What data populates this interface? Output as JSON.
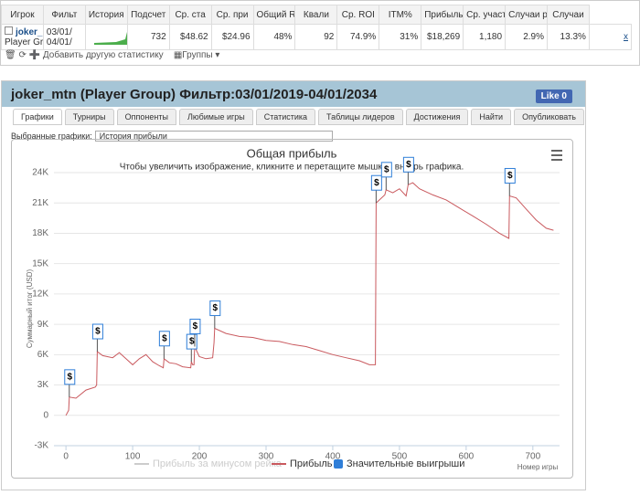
{
  "table": {
    "headers": [
      "Игрок",
      "Фильт",
      "История прибыли",
      "Подсчет",
      "Ср. ста",
      "Ср. при",
      "Общий ROI",
      "Квали",
      "Ср. ROI",
      "ITM%",
      "Прибыль",
      "Ср. участ",
      "Случаи р",
      "Случаи"
    ],
    "player": "joker_mtn",
    "group": "Player Group",
    "filter": [
      "03/01/",
      "04/01/"
    ],
    "cells": [
      "732",
      "$48.62",
      "$24.96",
      "48%",
      "92",
      "74.9%",
      "31%",
      "$18,269",
      "1,180",
      "2.9%",
      "13.3%"
    ],
    "remove": "x"
  },
  "toolbar": {
    "add": "Добавить другую статистику",
    "groups": "Группы"
  },
  "panel": {
    "title": "joker_mtn (Player Group) Фильтр:03/01/2019-04/01/2034",
    "like": "Like 0",
    "tabs": [
      "Графики",
      "Турниры",
      "Оппоненты",
      "Любимые игры",
      "Статистика",
      "Таблицы лидеров",
      "Достижения",
      "Найти",
      "Опубликовать"
    ],
    "selected_label": "Выбранные графики:",
    "selected_value": "История прибыли"
  },
  "chart_data": {
    "type": "line",
    "title": "Общая прибыль",
    "subtitle": "Чтобы увеличить изображение, кликните и перетащите мышкой внутрь графика.",
    "x_label": "Номер игры",
    "y_label": "Суммарный итог (USD)",
    "xlim": [
      -18,
      740
    ],
    "xticks": [
      0,
      100,
      200,
      300,
      400,
      500,
      600,
      700
    ],
    "ylim": [
      -3000,
      24000
    ],
    "yticks": [
      {
        "value": -3000,
        "label": "-3K"
      },
      {
        "value": 0,
        "label": "0"
      },
      {
        "value": 3000,
        "label": "3K"
      },
      {
        "value": 6000,
        "label": "6K"
      },
      {
        "value": 9000,
        "label": "9K"
      },
      {
        "value": 12000,
        "label": "12K"
      },
      {
        "value": 15000,
        "label": "15K"
      },
      {
        "value": 18000,
        "label": "18K"
      },
      {
        "value": 21000,
        "label": "21K"
      },
      {
        "value": 24000,
        "label": "24K"
      }
    ],
    "grid": true,
    "series": [
      {
        "name": "Прибыль за минусом рейка",
        "color": "#cccccc",
        "visible": false
      },
      {
        "name": "Прибыль",
        "color": "#c9595e",
        "x": [
          0,
          4,
          5,
          15,
          30,
          44,
          46,
          47,
          55,
          70,
          80,
          90,
          100,
          110,
          120,
          130,
          140,
          146,
          147,
          155,
          165,
          175,
          187,
          188,
          190,
          192,
          193,
          200,
          210,
          220,
          222,
          223,
          240,
          260,
          280,
          300,
          320,
          340,
          360,
          380,
          400,
          420,
          440,
          455,
          464,
          465,
          470,
          478,
          480,
          490,
          500,
          510,
          513,
          520,
          530,
          550,
          570,
          590,
          610,
          630,
          650,
          664,
          665,
          675,
          690,
          705,
          720,
          731
        ],
        "values": [
          0,
          500,
          1800,
          1700,
          2500,
          2800,
          3000,
          6300,
          5900,
          5700,
          6200,
          5600,
          5000,
          5600,
          6000,
          5300,
          4900,
          4700,
          5600,
          5200,
          5100,
          4800,
          4700,
          5300,
          5000,
          5000,
          6800,
          5800,
          5600,
          5700,
          7200,
          8600,
          8100,
          7800,
          7700,
          7400,
          7300,
          7000,
          6800,
          6400,
          6000,
          5700,
          5400,
          5000,
          5000,
          21000,
          21300,
          21800,
          22300,
          22000,
          22400,
          21700,
          22800,
          23000,
          22400,
          21800,
          21300,
          20500,
          19700,
          18900,
          18000,
          17500,
          21700,
          21500,
          20400,
          19300,
          18500,
          18300
        ]
      },
      {
        "name": "Значительные выигрыши",
        "color": "#2f7ed8",
        "flag_label": "$",
        "x": [
          5,
          47,
          147,
          188,
          193,
          223,
          465,
          480,
          513,
          665
        ],
        "values": [
          1800,
          6300,
          5600,
          5300,
          6800,
          8600,
          21000,
          22300,
          22800,
          21700
        ]
      }
    ]
  }
}
